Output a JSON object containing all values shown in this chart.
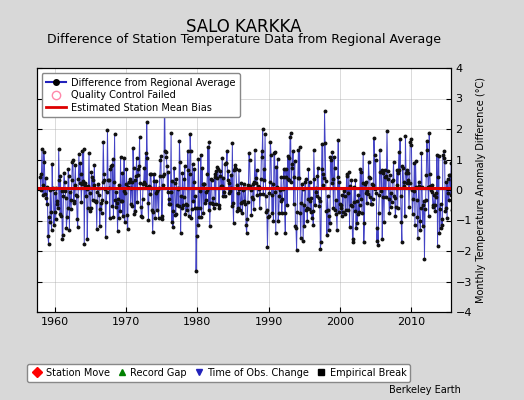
{
  "title": "SALO KARKKA",
  "subtitle": "Difference of Station Temperature Data from Regional Average",
  "ylabel_right": "Monthly Temperature Anomaly Difference (°C)",
  "ylim": [
    -4,
    4
  ],
  "xlim": [
    1957.5,
    2015.5
  ],
  "xticks": [
    1960,
    1970,
    1980,
    1990,
    2000,
    2010
  ],
  "yticks": [
    -4,
    -3,
    -2,
    -1,
    0,
    1,
    2,
    3,
    4
  ],
  "mean_bias": 0.07,
  "seed": 42,
  "start_year": 1958,
  "end_year": 2015,
  "bg_color": "#d8d8d8",
  "plot_bg_color": "#ffffff",
  "line_color": "#2222bb",
  "dot_color": "#111111",
  "bias_color": "#dd0000",
  "title_fontsize": 12,
  "subtitle_fontsize": 9,
  "tick_fontsize": 8,
  "legend1_labels": [
    "Difference from Regional Average",
    "Quality Control Failed",
    "Estimated Station Mean Bias"
  ],
  "legend2_labels": [
    "Station Move",
    "Record Gap",
    "Time of Obs. Change",
    "Empirical Break"
  ],
  "watermark": "Berkeley Earth",
  "qc_color": "#ff88aa"
}
